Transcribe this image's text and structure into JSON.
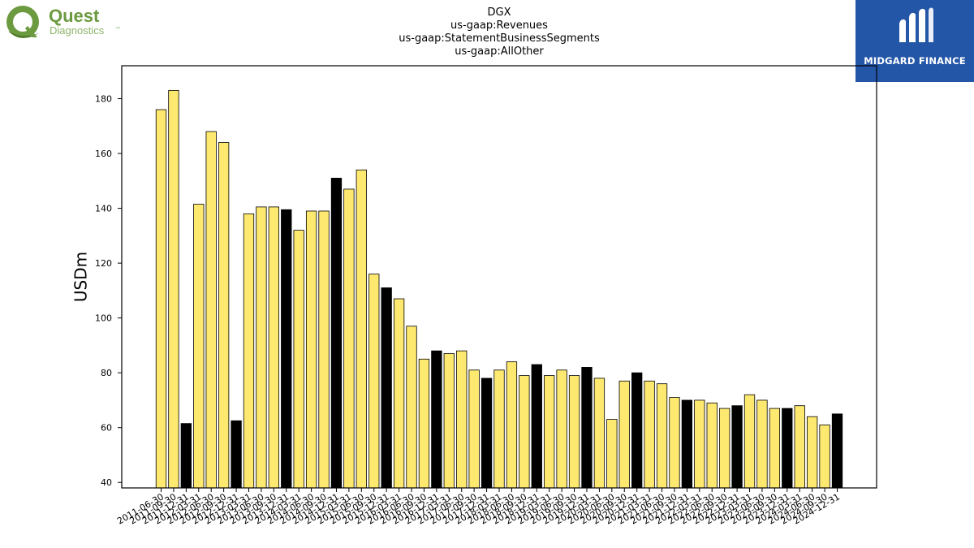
{
  "brand": {
    "left_logo_word1": "Quest",
    "left_logo_word2": "Diagnostics",
    "left_logo_tm": "™",
    "left_logo_color": "#6b9a3f",
    "right_logo_name": "MIDGARD FINANCE",
    "right_logo_bg": "#2456a8"
  },
  "chart_data": {
    "type": "bar",
    "title": [
      "DGX",
      "us-gaap:Revenues",
      "us-gaap:StatementBusinessSegments",
      "us-gaap:AllOther"
    ],
    "ylabel": "USDm",
    "xlabel": "",
    "ylim": [
      38,
      192
    ],
    "yticks": [
      40,
      60,
      80,
      100,
      120,
      140,
      160,
      180
    ],
    "grid": false,
    "colors": {
      "yellow": "#fde870",
      "black": "#000000"
    },
    "categories": [
      "2011-06-30",
      "2011-09-30",
      "2011-12-31",
      "2012-03-31",
      "2012-06-30",
      "2012-09-30",
      "2012-12-31",
      "2013-03-31",
      "2013-06-30",
      "2013-09-30",
      "2013-12-31",
      "2014-03-31",
      "2014-06-30",
      "2014-09-30",
      "2014-12-31",
      "2015-03-31",
      "2015-06-30",
      "2015-09-30",
      "2015-12-31",
      "2016-03-31",
      "2016-06-30",
      "2016-09-30",
      "2016-12-31",
      "2017-03-31",
      "2017-06-30",
      "2017-09-30",
      "2017-12-31",
      "2018-03-31",
      "2018-06-30",
      "2018-09-30",
      "2018-12-31",
      "2019-03-31",
      "2019-06-30",
      "2019-09-30",
      "2019-12-31",
      "2020-03-31",
      "2020-06-30",
      "2020-09-30",
      "2020-12-31",
      "2021-03-31",
      "2021-06-30",
      "2021-09-30",
      "2021-12-31",
      "2022-03-31",
      "2022-06-30",
      "2022-09-30",
      "2022-12-31",
      "2023-03-31",
      "2023-06-30",
      "2023-09-30",
      "2023-12-31",
      "2024-03-31",
      "2024-06-30",
      "2024-09-30",
      "2024-12-31"
    ],
    "values": [
      176,
      183,
      61.5,
      141.5,
      168,
      164,
      62.5,
      138,
      140.5,
      140.5,
      139.5,
      132,
      139,
      139,
      151,
      147,
      154,
      116,
      111,
      107,
      97,
      85,
      88,
      87,
      88,
      81,
      78,
      81,
      84,
      79,
      83,
      79,
      81,
      79,
      82,
      78,
      63,
      77,
      80,
      77,
      76,
      71,
      70,
      70,
      69,
      67,
      68,
      72,
      70,
      67,
      67,
      68,
      64,
      61,
      65
    ],
    "bar_colors": [
      "yellow",
      "yellow",
      "black",
      "yellow",
      "yellow",
      "yellow",
      "black",
      "yellow",
      "yellow",
      "yellow",
      "black",
      "yellow",
      "yellow",
      "yellow",
      "black",
      "yellow",
      "yellow",
      "yellow",
      "black",
      "yellow",
      "yellow",
      "yellow",
      "black",
      "yellow",
      "yellow",
      "yellow",
      "black",
      "yellow",
      "yellow",
      "yellow",
      "black",
      "yellow",
      "yellow",
      "yellow",
      "black",
      "yellow",
      "yellow",
      "yellow",
      "black",
      "yellow",
      "yellow",
      "yellow",
      "black",
      "yellow",
      "yellow",
      "yellow",
      "black",
      "yellow",
      "yellow",
      "yellow",
      "black",
      "yellow",
      "yellow",
      "yellow",
      "black"
    ]
  }
}
